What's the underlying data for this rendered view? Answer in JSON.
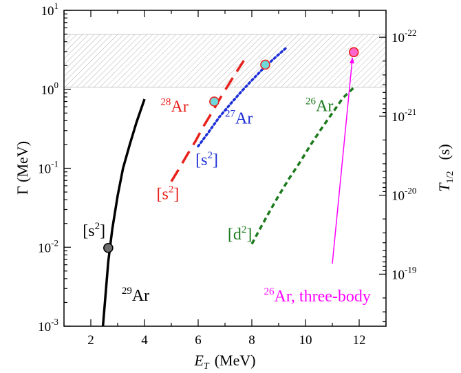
{
  "chart_data": {
    "type": "line",
    "xlabel": "E",
    "xlabel_sub": "T",
    "xlabel_unit": "(MeV)",
    "ylabel": "Γ  (MeV)",
    "y2label": "T",
    "y2label_sub": "1/2",
    "y2label_unit": "(s)",
    "xlim": [
      1,
      13
    ],
    "ylim": [
      0.001,
      10
    ],
    "yscale": "log",
    "x_ticks": [
      2,
      4,
      6,
      8,
      10,
      12
    ],
    "x_tick_labels": [
      "2",
      "4",
      "6",
      "8",
      "10",
      "12"
    ],
    "y_ticks": [
      {
        "value": 0.001,
        "base": "10",
        "exp": "-3"
      },
      {
        "value": 0.01,
        "base": "10",
        "exp": "-2"
      },
      {
        "value": 0.1,
        "base": "10",
        "exp": "-1"
      },
      {
        "value": 1,
        "base": "10",
        "exp": "0"
      },
      {
        "value": 10,
        "base": "10",
        "exp": "1"
      }
    ],
    "y2_ticks": [
      {
        "gamma": 4.56,
        "base": "10",
        "exp": "-22"
      },
      {
        "gamma": 0.456,
        "base": "10",
        "exp": "-21"
      },
      {
        "gamma": 0.0456,
        "base": "10",
        "exp": "-20"
      },
      {
        "gamma": 0.00456,
        "base": "10",
        "exp": "-19"
      }
    ],
    "band": {
      "y_min": 1.06,
      "y_max": 4.95
    },
    "series": [
      {
        "color": "#000000",
        "dash": "solid",
        "x": [
          2.45,
          2.55,
          2.65,
          2.8,
          3.0,
          3.2,
          3.45,
          3.7,
          4.0
        ],
        "y": [
          0.001,
          0.0025,
          0.0065,
          0.017,
          0.045,
          0.1,
          0.2,
          0.38,
          0.75
        ]
      },
      {
        "color": "#e8211c",
        "dash": "long",
        "x": [
          5.0,
          5.3,
          5.6,
          5.9,
          6.2,
          6.5,
          6.8,
          7.1,
          7.4,
          7.7
        ],
        "y": [
          0.068,
          0.1,
          0.15,
          0.22,
          0.34,
          0.5,
          0.75,
          1.1,
          1.6,
          2.3
        ]
      },
      {
        "color": "#1c2ed6",
        "dash": "dotted",
        "x": [
          6.0,
          6.4,
          6.8,
          7.2,
          7.6,
          8.0,
          8.4,
          8.8,
          9.3
        ],
        "y": [
          0.19,
          0.29,
          0.45,
          0.65,
          0.93,
          1.3,
          1.8,
          2.4,
          3.4
        ]
      },
      {
        "color": "#1c7a1c",
        "dash": "medium",
        "x": [
          8.0,
          8.3,
          8.6,
          9.0,
          9.4,
          9.8,
          10.2,
          10.6,
          11.0,
          11.4,
          11.8
        ],
        "y": [
          0.011,
          0.017,
          0.026,
          0.045,
          0.075,
          0.12,
          0.2,
          0.32,
          0.5,
          0.78,
          1.05
        ]
      }
    ],
    "markers": [
      {
        "x": 2.65,
        "y": 0.0098,
        "fill": "#6d6d6d",
        "stroke": "#000000"
      },
      {
        "x": 6.6,
        "y": 0.7,
        "fill": "#6fd8d8",
        "stroke": "#e8211c"
      },
      {
        "x": 8.5,
        "y": 2.05,
        "fill": "#6fd8d8",
        "stroke": "#e8211c"
      },
      {
        "x": 11.8,
        "y": 2.95,
        "fill": "#ff66cc",
        "stroke": "#e8211c"
      }
    ],
    "arrow": {
      "from": [
        11.0,
        0.0062
      ],
      "to": [
        11.75,
        2.5
      ],
      "color": "#ff00ff"
    },
    "annotations": {
      "ar29": {
        "mass": "29",
        "name": "Ar",
        "color": "#000000",
        "x": 3.15,
        "y": 0.0021
      },
      "ar28": {
        "mass": "28",
        "name": "Ar",
        "color": "#e8211c",
        "x": 4.6,
        "y": 0.52
      },
      "ar27": {
        "mass": "27",
        "name": "Ar",
        "color": "#1c2ed6",
        "x": 7.0,
        "y": 0.37
      },
      "ar26": {
        "mass": "26",
        "name": "Ar",
        "color": "#1c7a1c",
        "x": 10.0,
        "y": 0.53
      },
      "s2_black": {
        "pre": "[s",
        "sup": "2",
        "post": "]",
        "color": "#000000",
        "x": 1.7,
        "y": 0.0138
      },
      "s2_red": {
        "pre": "[s",
        "sup": "2",
        "post": "]",
        "color": "#e8211c",
        "x": 4.45,
        "y": 0.0405
      },
      "s2_blue": {
        "pre": "[s",
        "sup": "2",
        "post": "]",
        "color": "#1c2ed6",
        "x": 5.9,
        "y": 0.11
      },
      "d2_green": {
        "pre": "[d",
        "sup": "2",
        "post": "]",
        "color": "#1c7a1c",
        "x": 7.1,
        "y": 0.0125
      },
      "three_body": {
        "mass": "26",
        "name": "Ar, three-body",
        "color": "#ff00ff",
        "x": 8.45,
        "y": 0.00205
      }
    }
  }
}
